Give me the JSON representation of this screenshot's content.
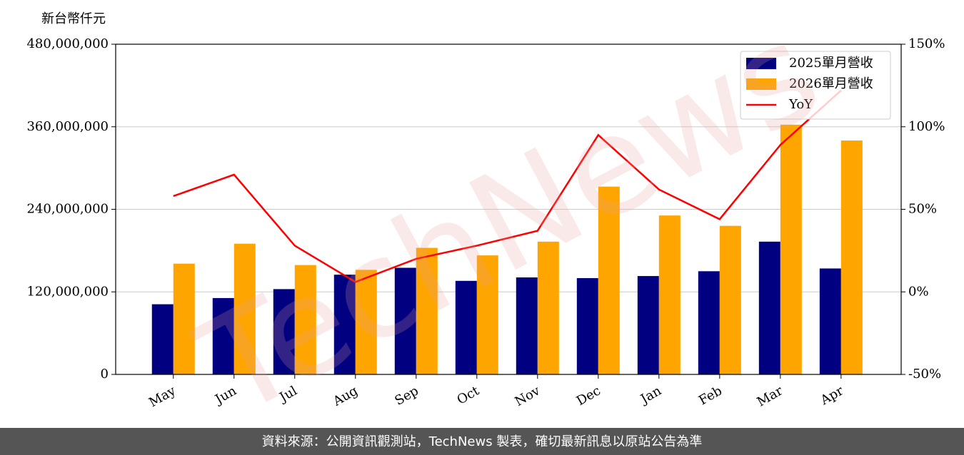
{
  "chart_data": {
    "type": "bar",
    "y_label": "新台幣仟元",
    "watermark": "TechNews",
    "categories": [
      "May",
      "Jun",
      "Jul",
      "Aug",
      "Sep",
      "Oct",
      "Nov",
      "Dec",
      "Jan",
      "Feb",
      "Mar",
      "Apr"
    ],
    "series": [
      {
        "name": "2025單月營收",
        "color": "#000080",
        "values": [
          102000000,
          111000000,
          124000000,
          145000000,
          155000000,
          136000000,
          141000000,
          140000000,
          143000000,
          150000000,
          193000000,
          154000000
        ]
      },
      {
        "name": "2026單月營收",
        "color": "#ffa500",
        "values": [
          161000000,
          190000000,
          159000000,
          152000000,
          184000000,
          173000000,
          193000000,
          273000000,
          231000000,
          216000000,
          363000000,
          340000000
        ]
      },
      {
        "name": "YoY",
        "type": "line",
        "axis": "y2",
        "color": "#ff0000",
        "values": [
          58,
          71,
          28,
          6,
          20,
          28,
          37,
          95,
          62,
          44,
          89,
          122
        ]
      }
    ],
    "ylim": [
      0,
      480000000
    ],
    "yticks": [
      0,
      {
        "value": 120000000,
        "label": "120,000,000"
      },
      {
        "value": 240000000,
        "label": "240,000,000"
      },
      {
        "value": 360000000,
        "label": "360,000,000"
      },
      {
        "value": 480000000,
        "label": "480,000,000"
      }
    ],
    "y2lim": [
      -50,
      150
    ],
    "y2ticks": [
      {
        "value": -50,
        "label": "-50%"
      },
      {
        "value": 0,
        "label": "0%"
      },
      {
        "value": 50,
        "label": "50%"
      },
      {
        "value": 100,
        "label": "100%"
      },
      {
        "value": 150,
        "label": "150%"
      }
    ],
    "grid": true,
    "legend": "upper right",
    "source": "資料來源：公開資訊觀測站，TechNews 製表，確切最新訊息以原站公告為準"
  }
}
